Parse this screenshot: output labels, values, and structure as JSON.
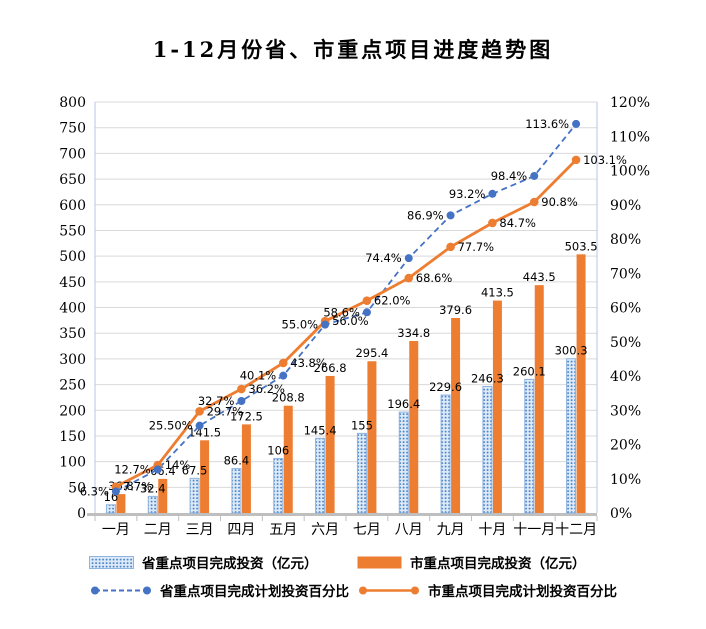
{
  "chart_data": {
    "type": "combo (bar + line, dual axis)",
    "title": "1-12月份省、市重点项目进度趋势图",
    "categories": [
      "一月",
      "二月",
      "三月",
      "四月",
      "五月",
      "六月",
      "七月",
      "八月",
      "九月",
      "十月",
      "十一月",
      "十二月"
    ],
    "series": [
      {
        "name": "省重点项目完成投资（亿元）",
        "type": "bar",
        "axis": "left",
        "values": [
          16,
          32.4,
          67.5,
          86.4,
          106,
          145.4,
          155,
          196.4,
          229.6,
          246.3,
          260.1,
          300.3
        ],
        "labels": [
          "16",
          "32.4",
          "67.5",
          "86.4",
          "106",
          "145.4",
          "155",
          "196.4",
          "229.6",
          "246.3",
          "260.1",
          "300.3"
        ]
      },
      {
        "name": "市重点项目完成投资（亿元）",
        "type": "bar",
        "axis": "left",
        "values": [
          36.8,
          66.4,
          141.5,
          172.5,
          208.8,
          266.8,
          295.4,
          334.8,
          379.6,
          413.5,
          443.5,
          503.5
        ],
        "labels": [
          "36.8",
          "66.4",
          "141.5",
          "172.5",
          "208.8",
          "266.8",
          "295.4",
          "334.8",
          "379.6",
          "413.5",
          "443.5",
          "503.5"
        ]
      },
      {
        "name": "省重点项目完成计划投资百分比",
        "type": "line",
        "style": "dashed",
        "axis": "right",
        "values": [
          6.3,
          12.7,
          25.5,
          32.7,
          40.1,
          55.0,
          58.6,
          74.4,
          86.9,
          93.2,
          98.4,
          113.6
        ],
        "labels": [
          "6.3%",
          "12.7%",
          "25.50%",
          "32.7%",
          "40.1%",
          "55.0%",
          "58.6%",
          "74.4%",
          "86.9%",
          "93.2%",
          "98.4%",
          "113.6%"
        ]
      },
      {
        "name": "市重点项目完成计划投资百分比",
        "type": "line",
        "style": "solid",
        "axis": "right",
        "values": [
          7.7,
          14,
          29.7,
          36.2,
          43.8,
          56.0,
          62.0,
          68.6,
          77.7,
          84.7,
          90.8,
          103.1
        ],
        "labels": [
          "7.7%",
          "14%",
          "29.7%",
          "36.2%",
          "43.8%",
          "56.0%",
          "62.0%",
          "68.6%",
          "77.7%",
          "84.7%",
          "90.8%",
          "103.1%"
        ]
      }
    ],
    "left_axis": {
      "min": 0,
      "max": 800,
      "step": 50,
      "ticks": [
        "0",
        "50",
        "100",
        "150",
        "200",
        "250",
        "300",
        "350",
        "400",
        "450",
        "500",
        "550",
        "600",
        "650",
        "700",
        "750",
        "800"
      ]
    },
    "right_axis": {
      "min": 0,
      "max": 120,
      "step": 10,
      "ticks": [
        "0%",
        "10%",
        "20%",
        "30%",
        "40%",
        "50%",
        "60%",
        "70%",
        "80%",
        "90%",
        "100%",
        "110%",
        "120%"
      ]
    },
    "grid": "horizontal only",
    "legend_position": "bottom",
    "colors": {
      "orange": "#ED7D31",
      "blue": "#4472C4",
      "blue_bar_fill": "#DCE9F8",
      "blue_bar_dot": "#4D86C8",
      "blue_bar_border": "#8FB4E0",
      "grid": "#D9D9D9",
      "plot_border": "#B4C7E7",
      "axis_line": "#BFBFBF"
    }
  },
  "legend": {
    "items": [
      {
        "label": "省重点项目完成投资（亿元）"
      },
      {
        "label": "市重点项目完成投资（亿元）"
      },
      {
        "label": "省重点项目完成计划投资百分比"
      },
      {
        "label": "市重点项目完成计划投资百分比"
      }
    ]
  }
}
